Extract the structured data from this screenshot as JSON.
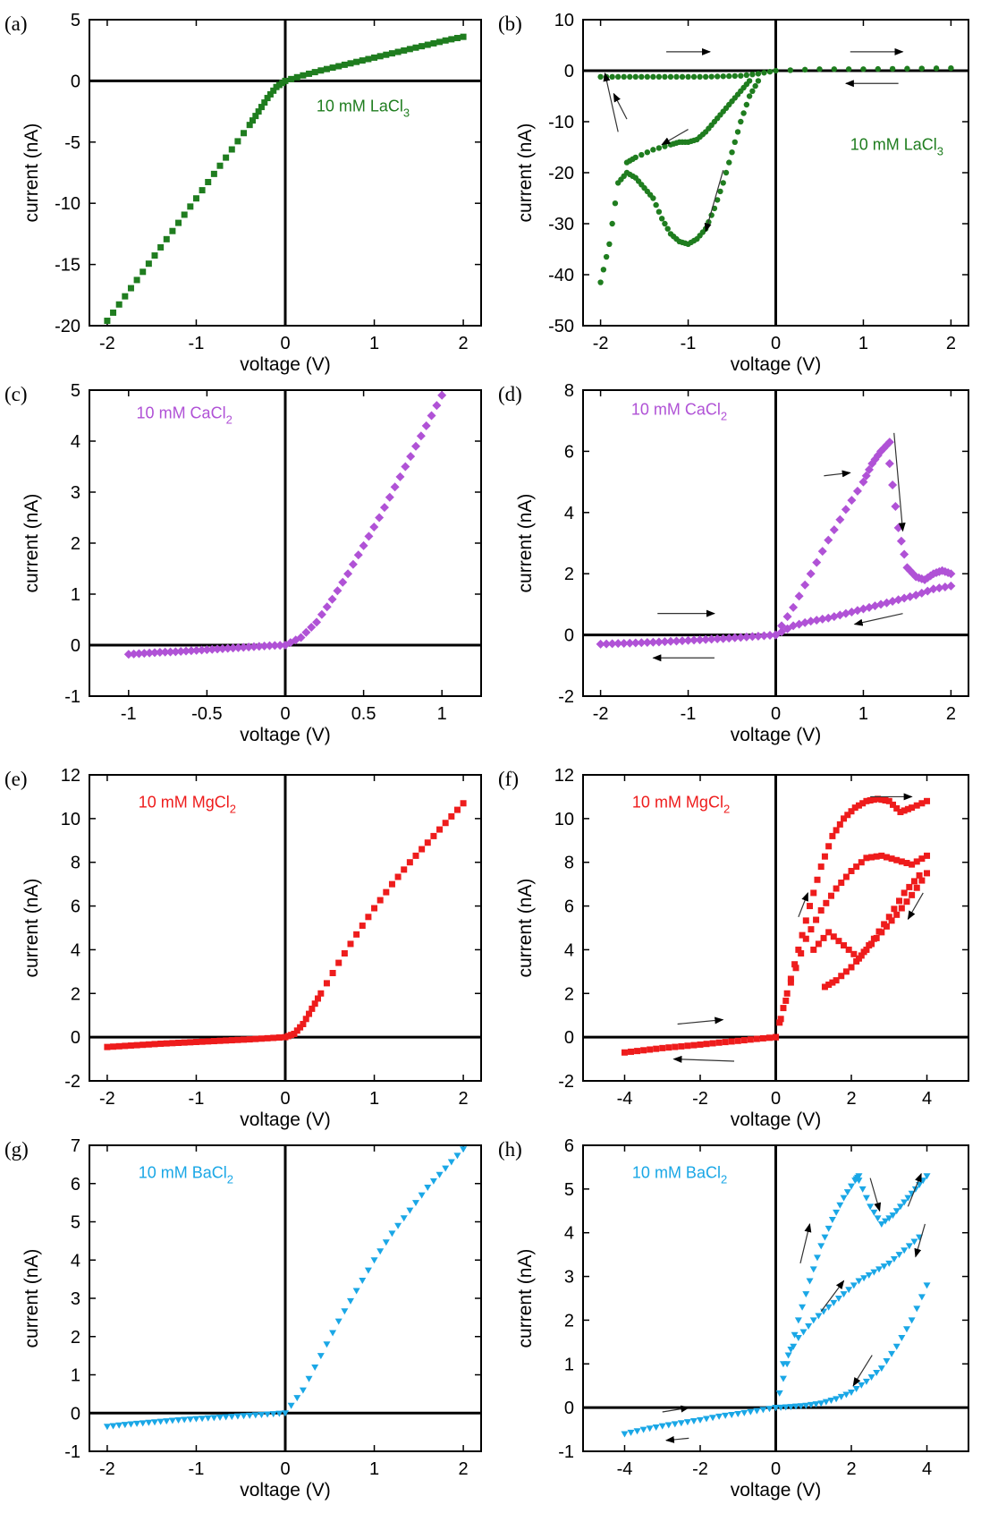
{
  "chart_data": [
    {
      "panel": "(a)",
      "type": "scatter",
      "xlabel": "voltage (V)",
      "ylabel": "current (nA)",
      "xlim": [
        -2.2,
        2.2
      ],
      "ylim": [
        -20,
        5
      ],
      "xticks": [
        -2,
        -1,
        0,
        1,
        2
      ],
      "yticks": [
        -20,
        -15,
        -10,
        -5,
        0,
        5
      ],
      "annotation": {
        "text": "10 mM LaCl",
        "sub": "3",
        "at": [
          0.35,
          -2.5
        ]
      },
      "color": "#1f7d1f",
      "marker": "square",
      "series": [
        {
          "x": [
            -2.0,
            -1.8,
            -1.6,
            -1.4,
            -1.2,
            -1.0,
            -0.8,
            -0.6,
            -0.4,
            -0.3,
            -0.2,
            -0.1,
            0.0,
            0.2,
            0.4,
            0.6,
            0.8,
            1.0,
            1.2,
            1.4,
            1.6,
            1.8,
            2.0
          ],
          "y": [
            -19.6,
            -17.6,
            -15.6,
            -13.6,
            -11.6,
            -9.6,
            -7.6,
            -5.6,
            -3.6,
            -2.5,
            -1.4,
            -0.5,
            0.0,
            0.45,
            0.85,
            1.2,
            1.55,
            1.9,
            2.25,
            2.6,
            2.95,
            3.3,
            3.6
          ]
        }
      ]
    },
    {
      "panel": "(b)",
      "type": "scatter",
      "xlabel": "voltage (V)",
      "ylabel": "current (nA)",
      "xlim": [
        -2.2,
        2.2
      ],
      "ylim": [
        -50,
        10
      ],
      "xticks": [
        -2,
        -1,
        0,
        1,
        2
      ],
      "yticks": [
        -50,
        -40,
        -30,
        -20,
        -10,
        0,
        10
      ],
      "annotation": {
        "text": "10 mM LaCl",
        "sub": "3",
        "at": [
          0.85,
          -15.5
        ]
      },
      "color": "#1f7d1f",
      "marker": "circle",
      "series": [
        {
          "x": [
            -2.0,
            -1.8,
            -1.6,
            -1.4,
            -1.2,
            -1.0,
            -0.8,
            -0.6,
            -0.4,
            -0.2,
            0.0,
            0.5,
            1.0,
            1.5,
            2.0
          ],
          "y": [
            -1.2,
            -1.2,
            -1.2,
            -1.2,
            -1.2,
            -1.2,
            -1.2,
            -1.1,
            -1.0,
            -0.6,
            0.0,
            0.3,
            0.3,
            0.4,
            0.5
          ]
        },
        {
          "x": [
            -2.0,
            -1.9,
            -1.8,
            -1.7,
            -1.6,
            -1.5,
            -1.4,
            -1.3,
            -1.2,
            -1.1,
            -1.0,
            -0.9,
            -0.8,
            -0.7,
            -0.6,
            -0.5,
            -0.4,
            -0.3,
            -0.2
          ],
          "y": [
            -41.5,
            -34,
            -22,
            -20,
            -21,
            -23,
            -25,
            -29,
            -32,
            -33.5,
            -34,
            -33,
            -31,
            -27,
            -22,
            -16,
            -10,
            -5,
            -2
          ]
        },
        {
          "x": [
            -1.7,
            -1.6,
            -1.4,
            -1.2,
            -1.1,
            -1.0,
            -0.9,
            -0.8,
            -0.7,
            -0.6,
            -0.5,
            -0.4,
            -0.3
          ],
          "y": [
            -18,
            -17,
            -15.5,
            -14.5,
            -14,
            -14,
            -13.5,
            -12,
            -10,
            -8,
            -6,
            -4,
            -2
          ]
        }
      ],
      "arrows": [
        [
          -1.25,
          3.7,
          -0.75,
          3.7
        ],
        [
          0.85,
          3.7,
          1.45,
          3.7
        ],
        [
          1.4,
          -2.5,
          0.8,
          -2.5
        ],
        [
          -1.8,
          -12,
          -1.95,
          -0.5
        ],
        [
          -1.7,
          -9.5,
          -1.85,
          -4.5
        ],
        [
          -1.0,
          -11.5,
          -1.3,
          -14.5
        ],
        [
          -0.6,
          -19.5,
          -0.8,
          -31.5
        ]
      ]
    },
    {
      "panel": "(c)",
      "type": "scatter",
      "xlabel": "voltage (V)",
      "ylabel": "current (nA)",
      "xlim": [
        -1.25,
        1.25
      ],
      "ylim": [
        -1,
        5
      ],
      "xticks": [
        -1,
        -0.5,
        0,
        0.5,
        1
      ],
      "yticks": [
        -1,
        0,
        1,
        2,
        3,
        4,
        5
      ],
      "annotation": {
        "text": "10 mM CaCl",
        "sub": "2",
        "at": [
          -0.95,
          4.45
        ]
      },
      "color": "#b052d6",
      "marker": "diamond",
      "series": [
        {
          "x": [
            -1.0,
            -0.9,
            -0.8,
            -0.7,
            -0.6,
            -0.5,
            -0.4,
            -0.3,
            -0.2,
            -0.1,
            0.0,
            0.1,
            0.2,
            0.3,
            0.4,
            0.5,
            0.6,
            0.7,
            0.8,
            0.9,
            1.0
          ],
          "y": [
            -0.18,
            -0.16,
            -0.14,
            -0.13,
            -0.11,
            -0.09,
            -0.07,
            -0.05,
            -0.03,
            -0.01,
            0.0,
            0.15,
            0.45,
            0.9,
            1.4,
            1.95,
            2.5,
            3.1,
            3.7,
            4.3,
            4.9
          ]
        }
      ]
    },
    {
      "panel": "(d)",
      "type": "scatter",
      "xlabel": "voltage (V)",
      "ylabel": "current (nA)",
      "xlim": [
        -2.2,
        2.2
      ],
      "ylim": [
        -2,
        8
      ],
      "xticks": [
        -2,
        -1,
        0,
        1,
        2
      ],
      "yticks": [
        -2,
        0,
        2,
        4,
        6,
        8
      ],
      "annotation": {
        "text": "10 mM CaCl",
        "sub": "2",
        "at": [
          -1.65,
          7.2
        ]
      },
      "color": "#b052d6",
      "marker": "diamond",
      "series": [
        {
          "x": [
            -2.0,
            -1.8,
            -1.6,
            -1.4,
            -1.2,
            -1.0,
            -0.8,
            -0.6,
            -0.4,
            -0.2,
            0.0
          ],
          "y": [
            -0.3,
            -0.28,
            -0.26,
            -0.24,
            -0.21,
            -0.18,
            -0.15,
            -0.12,
            -0.08,
            -0.04,
            0.0
          ]
        },
        {
          "x": [
            0.0,
            0.2,
            0.4,
            0.6,
            0.8,
            1.0,
            1.1,
            1.2,
            1.3
          ],
          "y": [
            0.0,
            0.9,
            2.0,
            3.1,
            4.1,
            5.0,
            5.6,
            6.0,
            6.3
          ]
        },
        {
          "x": [
            1.3,
            1.4,
            1.5,
            1.6,
            1.7,
            1.8,
            1.9,
            2.0
          ],
          "y": [
            5.6,
            3.5,
            2.2,
            1.9,
            1.8,
            2.0,
            2.1,
            2.0
          ]
        },
        {
          "x": [
            0.0,
            0.2,
            0.4,
            0.6,
            0.8,
            1.0,
            1.2,
            1.4,
            1.6,
            1.8,
            2.0
          ],
          "y": [
            0.0,
            0.3,
            0.45,
            0.55,
            0.7,
            0.85,
            1.0,
            1.15,
            1.3,
            1.5,
            1.6
          ]
        }
      ],
      "arrows": [
        [
          -1.35,
          0.7,
          -0.7,
          0.7
        ],
        [
          -0.7,
          -0.75,
          -1.4,
          -0.75
        ],
        [
          0.55,
          5.2,
          0.85,
          5.3
        ],
        [
          1.35,
          6.6,
          1.45,
          3.4
        ],
        [
          1.45,
          0.7,
          0.9,
          0.35
        ]
      ]
    },
    {
      "panel": "(e)",
      "type": "scatter",
      "xlabel": "voltage (V)",
      "ylabel": "current (nA)",
      "xlim": [
        -2.2,
        2.2
      ],
      "ylim": [
        -2,
        12
      ],
      "xticks": [
        -2,
        -1,
        0,
        1,
        2
      ],
      "yticks": [
        -2,
        0,
        2,
        4,
        6,
        8,
        10,
        12
      ],
      "annotation": {
        "text": "10 mM MgCl",
        "sub": "2",
        "at": [
          -1.65,
          10.5
        ]
      },
      "color": "#ee1c1c",
      "marker": "square",
      "series": [
        {
          "x": [
            -2.0,
            -1.8,
            -1.6,
            -1.4,
            -1.2,
            -1.0,
            -0.8,
            -0.6,
            -0.4,
            -0.2,
            0.0,
            0.1,
            0.2,
            0.3,
            0.4,
            0.6,
            0.8,
            1.0,
            1.2,
            1.4,
            1.6,
            1.8,
            2.0
          ],
          "y": [
            -0.45,
            -0.4,
            -0.35,
            -0.3,
            -0.26,
            -0.22,
            -0.18,
            -0.14,
            -0.1,
            -0.05,
            0.0,
            0.15,
            0.6,
            1.3,
            2.0,
            3.4,
            4.7,
            5.9,
            7.0,
            8.0,
            8.9,
            9.8,
            10.7
          ]
        }
      ]
    },
    {
      "panel": "(f)",
      "type": "scatter",
      "xlabel": "voltage (V)",
      "ylabel": "current (nA)",
      "xlim": [
        -5.1,
        5.1
      ],
      "ylim": [
        -2,
        12
      ],
      "xticks": [
        -4,
        -2,
        0,
        2,
        4
      ],
      "yticks": [
        -2,
        0,
        2,
        4,
        6,
        8,
        10,
        12
      ],
      "annotation": {
        "text": "10 mM MgCl",
        "sub": "2",
        "at": [
          -3.8,
          10.5
        ]
      },
      "color": "#ee1c1c",
      "marker": "square",
      "series": [
        {
          "x": [
            -4.0,
            -3.5,
            -3.0,
            -2.5,
            -2.0,
            -1.5,
            -1.0,
            -0.5,
            0.0
          ],
          "y": [
            -0.7,
            -0.6,
            -0.5,
            -0.42,
            -0.34,
            -0.25,
            -0.17,
            -0.08,
            0.0
          ]
        },
        {
          "x": [
            0.0,
            0.3,
            0.6,
            0.9,
            1.2,
            1.5,
            1.8,
            2.1,
            2.4,
            2.7,
            3.0,
            3.3,
            3.6,
            4.0
          ],
          "y": [
            0.0,
            2.0,
            4.0,
            6.0,
            7.8,
            9.2,
            10.0,
            10.5,
            10.8,
            10.9,
            10.8,
            10.3,
            10.5,
            10.8
          ]
        },
        {
          "x": [
            4.0,
            3.6,
            3.2,
            2.8,
            2.4,
            2.0,
            1.6,
            1.3
          ],
          "y": [
            7.5,
            6.5,
            5.6,
            4.8,
            4.0,
            3.2,
            2.6,
            2.3
          ]
        },
        {
          "x": [
            0.0,
            0.4,
            0.8,
            1.2,
            1.6,
            2.0,
            2.4,
            2.8,
            3.2,
            3.6,
            4.0
          ],
          "y": [
            0.0,
            2.5,
            4.5,
            5.8,
            6.8,
            7.6,
            8.2,
            8.3,
            8.1,
            7.9,
            8.3
          ]
        },
        {
          "x": [
            1.0,
            1.4,
            1.8,
            2.2,
            2.6,
            3.0,
            3.4,
            3.8
          ],
          "y": [
            4.0,
            4.8,
            4.2,
            3.6,
            4.5,
            5.5,
            6.6,
            7.4
          ]
        }
      ],
      "arrows": [
        [
          2.5,
          11.0,
          3.6,
          11.0
        ],
        [
          3.9,
          6.6,
          3.5,
          5.4
        ],
        [
          0.6,
          5.5,
          0.85,
          6.6
        ],
        [
          -2.6,
          0.6,
          -1.4,
          0.8
        ],
        [
          -1.1,
          -1.1,
          -2.7,
          -1.0
        ]
      ]
    },
    {
      "panel": "(g)",
      "type": "scatter",
      "xlabel": "voltage (V)",
      "ylabel": "current (nA)",
      "xlim": [
        -2.2,
        2.2
      ],
      "ylim": [
        -1,
        7
      ],
      "xticks": [
        -2,
        -1,
        0,
        1,
        2
      ],
      "yticks": [
        -1,
        0,
        1,
        2,
        3,
        4,
        5,
        6,
        7
      ],
      "annotation": {
        "text": "10 mM BaCl",
        "sub": "2",
        "at": [
          -1.65,
          6.15
        ]
      },
      "color": "#1aa7e6",
      "marker": "triangle",
      "series": [
        {
          "x": [
            -2.0,
            -1.8,
            -1.6,
            -1.4,
            -1.2,
            -1.0,
            -0.8,
            -0.6,
            -0.4,
            -0.2,
            0.0,
            0.2,
            0.4,
            0.6,
            0.8,
            1.0,
            1.2,
            1.4,
            1.6,
            1.8,
            2.0
          ],
          "y": [
            -0.35,
            -0.3,
            -0.26,
            -0.22,
            -0.18,
            -0.15,
            -0.12,
            -0.09,
            -0.06,
            -0.03,
            0.0,
            0.6,
            1.5,
            2.4,
            3.2,
            4.0,
            4.7,
            5.3,
            5.9,
            6.4,
            6.9
          ]
        }
      ]
    },
    {
      "panel": "(h)",
      "type": "scatter",
      "xlabel": "voltage (V)",
      "ylabel": "current (nA)",
      "xlim": [
        -5.1,
        5.1
      ],
      "ylim": [
        -1,
        6
      ],
      "xticks": [
        -4,
        -2,
        0,
        2,
        4
      ],
      "yticks": [
        -1,
        0,
        1,
        2,
        3,
        4,
        5,
        6
      ],
      "annotation": {
        "text": "10 mM BaCl",
        "sub": "2",
        "at": [
          -3.8,
          5.25
        ]
      },
      "color": "#1aa7e6",
      "marker": "triangle",
      "series": [
        {
          "x": [
            -4.0,
            -3.5,
            -3.0,
            -2.5,
            -2.0,
            -1.5,
            -1.0,
            -0.5,
            0.0
          ],
          "y": [
            -0.6,
            -0.5,
            -0.42,
            -0.35,
            -0.28,
            -0.2,
            -0.14,
            -0.07,
            0.0
          ]
        },
        {
          "x": [
            0.0,
            0.3,
            0.6,
            0.9,
            1.2,
            1.5,
            1.8,
            2.1,
            2.2
          ],
          "y": [
            0.0,
            1.0,
            2.0,
            2.9,
            3.7,
            4.3,
            4.8,
            5.2,
            5.3
          ]
        },
        {
          "x": [
            2.2,
            2.5,
            2.8,
            3.1,
            3.4,
            3.7,
            4.0
          ],
          "y": [
            5.2,
            4.6,
            4.2,
            4.4,
            4.7,
            5.0,
            5.3
          ]
        },
        {
          "x": [
            4.0,
            3.6,
            3.2,
            2.8,
            2.4,
            2.0,
            1.6,
            1.2,
            0.8,
            0.4,
            0.0
          ],
          "y": [
            2.8,
            2.0,
            1.4,
            0.9,
            0.6,
            0.35,
            0.2,
            0.1,
            0.05,
            0.02,
            0.0
          ]
        },
        {
          "x": [
            0.2,
            0.6,
            1.0,
            1.4,
            1.8,
            2.2,
            2.6,
            3.0,
            3.4,
            3.8
          ],
          "y": [
            1.0,
            1.6,
            2.0,
            2.3,
            2.6,
            2.9,
            3.1,
            3.3,
            3.6,
            3.9
          ]
        }
      ],
      "arrows": [
        [
          2.5,
          5.25,
          2.75,
          4.5
        ],
        [
          3.5,
          4.6,
          3.85,
          5.35
        ],
        [
          3.95,
          4.2,
          3.7,
          3.45
        ],
        [
          0.65,
          3.3,
          0.9,
          4.2
        ],
        [
          1.2,
          2.2,
          1.8,
          2.9
        ],
        [
          2.55,
          1.2,
          2.05,
          0.5
        ],
        [
          -3.0,
          -0.1,
          -2.3,
          0.0
        ],
        [
          -2.3,
          -0.7,
          -2.9,
          -0.75
        ]
      ]
    }
  ]
}
